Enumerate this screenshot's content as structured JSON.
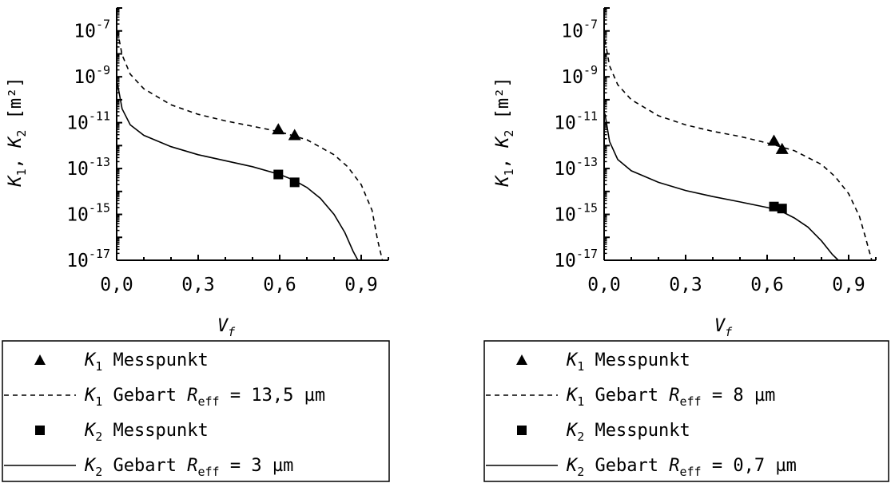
{
  "chart_data": [
    {
      "type": "line",
      "title": "",
      "xlabel_var": "V",
      "xlabel_sub": "f",
      "ylabel_k1": "K",
      "ylabel_k1_sub": "1",
      "ylabel_sep": ", ",
      "ylabel_k2": "K",
      "ylabel_k2_sub": "2",
      "ylabel_unit": " [m²]",
      "x_scale": "linear",
      "y_scale": "log",
      "xlim": [
        0.0,
        1.0
      ],
      "ylim": [
        1e-17,
        1e-06
      ],
      "x_ticks": [
        "0,0",
        "0,3",
        "0,6",
        "0,9"
      ],
      "x_tick_values": [
        0.0,
        0.3,
        0.6,
        0.9
      ],
      "y_tick_mantissa": "10",
      "y_tick_exponents": [
        "-7",
        "-9",
        "-11",
        "-13",
        "-15",
        "-17"
      ],
      "grid": false,
      "legend_position": "bottom",
      "series": [
        {
          "name": "K1 Messpunkt",
          "kind": "scatter",
          "marker": "triangle",
          "legend": {
            "k": "K",
            "sub": "1",
            "text": " Messpunkt",
            "param": "",
            "eq": "",
            "value": ""
          },
          "points": [
            {
              "x": 0.595,
              "y": 5e-12
            },
            {
              "x": 0.655,
              "y": 2.8e-12
            }
          ]
        },
        {
          "name": "K1 Gebart",
          "kind": "line",
          "style": "dashed",
          "legend": {
            "k": "K",
            "sub": "1",
            "text": " Gebart ",
            "param": "R",
            "param_sub": "eff",
            "eq": " = ",
            "value": "13,5 µm"
          },
          "points": [
            {
              "x": 0.003,
              "y": 1e-07
            },
            {
              "x": 0.02,
              "y": 9e-09
            },
            {
              "x": 0.05,
              "y": 1.3e-09
            },
            {
              "x": 0.1,
              "y": 3e-10
            },
            {
              "x": 0.2,
              "y": 6e-11
            },
            {
              "x": 0.3,
              "y": 2.3e-11
            },
            {
              "x": 0.4,
              "y": 1.2e-11
            },
            {
              "x": 0.5,
              "y": 7e-12
            },
            {
              "x": 0.6,
              "y": 4e-12
            },
            {
              "x": 0.7,
              "y": 1.8e-12
            },
            {
              "x": 0.8,
              "y": 4e-13
            },
            {
              "x": 0.85,
              "y": 1.2e-13
            },
            {
              "x": 0.9,
              "y": 2e-14
            },
            {
              "x": 0.94,
              "y": 1.5e-15
            },
            {
              "x": 0.96,
              "y": 8e-17
            },
            {
              "x": 0.978,
              "y": 1e-17
            }
          ]
        },
        {
          "name": "K2 Messpunkt",
          "kind": "scatter",
          "marker": "square",
          "legend": {
            "k": "K",
            "sub": "2",
            "text": " Messpunkt",
            "param": "",
            "eq": "",
            "value": ""
          },
          "points": [
            {
              "x": 0.595,
              "y": 5.5e-14
            },
            {
              "x": 0.655,
              "y": 2.5e-14
            }
          ]
        },
        {
          "name": "K2 Gebart",
          "kind": "line",
          "style": "solid",
          "legend": {
            "k": "K",
            "sub": "2",
            "text": " Gebart ",
            "param": "R",
            "param_sub": "eff",
            "eq": " = ",
            "value": "3 µm"
          },
          "points": [
            {
              "x": 0.003,
              "y": 5e-10
            },
            {
              "x": 0.02,
              "y": 4e-11
            },
            {
              "x": 0.05,
              "y": 8e-12
            },
            {
              "x": 0.1,
              "y": 2.8e-12
            },
            {
              "x": 0.2,
              "y": 9e-13
            },
            {
              "x": 0.3,
              "y": 4e-13
            },
            {
              "x": 0.4,
              "y": 2.2e-13
            },
            {
              "x": 0.5,
              "y": 1.2e-13
            },
            {
              "x": 0.6,
              "y": 5.5e-14
            },
            {
              "x": 0.65,
              "y": 3.2e-14
            },
            {
              "x": 0.7,
              "y": 1.5e-14
            },
            {
              "x": 0.75,
              "y": 5e-15
            },
            {
              "x": 0.8,
              "y": 1e-15
            },
            {
              "x": 0.84,
              "y": 1.6e-16
            },
            {
              "x": 0.87,
              "y": 2.5e-17
            },
            {
              "x": 0.888,
              "y": 1e-17
            }
          ]
        }
      ]
    },
    {
      "type": "line",
      "title": "",
      "xlabel_var": "V",
      "xlabel_sub": "f",
      "ylabel_k1": "K",
      "ylabel_k1_sub": "1",
      "ylabel_sep": ", ",
      "ylabel_k2": "K",
      "ylabel_k2_sub": "2",
      "ylabel_unit": " [m²]",
      "x_scale": "linear",
      "y_scale": "log",
      "xlim": [
        0.0,
        1.0
      ],
      "ylim": [
        1e-17,
        1e-06
      ],
      "x_ticks": [
        "0,0",
        "0,3",
        "0,6",
        "0,9"
      ],
      "x_tick_values": [
        0.0,
        0.3,
        0.6,
        0.9
      ],
      "y_tick_mantissa": "10",
      "y_tick_exponents": [
        "-7",
        "-9",
        "-11",
        "-13",
        "-15",
        "-17"
      ],
      "grid": false,
      "legend_position": "bottom",
      "series": [
        {
          "name": "K1 Messpunkt",
          "kind": "scatter",
          "marker": "triangle",
          "legend": {
            "k": "K",
            "sub": "1",
            "text": " Messpunkt",
            "param": "",
            "eq": "",
            "value": ""
          },
          "points": [
            {
              "x": 0.625,
              "y": 1.6e-12
            },
            {
              "x": 0.655,
              "y": 7e-13
            }
          ]
        },
        {
          "name": "K1 Gebart",
          "kind": "line",
          "style": "dashed",
          "legend": {
            "k": "K",
            "sub": "1",
            "text": " Gebart ",
            "param": "R",
            "param_sub": "eff",
            "eq": " = ",
            "value": "8 µm"
          },
          "points": [
            {
              "x": 0.003,
              "y": 4e-08
            },
            {
              "x": 0.02,
              "y": 3e-09
            },
            {
              "x": 0.05,
              "y": 4.5e-10
            },
            {
              "x": 0.1,
              "y": 1e-10
            },
            {
              "x": 0.2,
              "y": 2e-11
            },
            {
              "x": 0.3,
              "y": 8e-12
            },
            {
              "x": 0.4,
              "y": 4.2e-12
            },
            {
              "x": 0.5,
              "y": 2.5e-12
            },
            {
              "x": 0.6,
              "y": 1.3e-12
            },
            {
              "x": 0.7,
              "y": 6e-13
            },
            {
              "x": 0.8,
              "y": 1.5e-13
            },
            {
              "x": 0.85,
              "y": 4.5e-14
            },
            {
              "x": 0.9,
              "y": 8e-15
            },
            {
              "x": 0.94,
              "y": 8e-16
            },
            {
              "x": 0.96,
              "y": 1.2e-16
            },
            {
              "x": 0.985,
              "y": 1e-17
            }
          ]
        },
        {
          "name": "K2 Messpunkt",
          "kind": "scatter",
          "marker": "square",
          "legend": {
            "k": "K",
            "sub": "2",
            "text": " Messpunkt",
            "param": "",
            "eq": "",
            "value": ""
          },
          "points": [
            {
              "x": 0.625,
              "y": 2.2e-15
            },
            {
              "x": 0.655,
              "y": 1.8e-15
            }
          ]
        },
        {
          "name": "K2 Gebart",
          "kind": "line",
          "style": "solid",
          "legend": {
            "k": "K",
            "sub": "2",
            "text": " Gebart ",
            "param": "R",
            "param_sub": "eff",
            "eq": " = ",
            "value": "0,7 µm"
          },
          "points": [
            {
              "x": 0.003,
              "y": 2.5e-11
            },
            {
              "x": 0.02,
              "y": 1.5e-12
            },
            {
              "x": 0.05,
              "y": 2.5e-13
            },
            {
              "x": 0.1,
              "y": 8e-14
            },
            {
              "x": 0.2,
              "y": 2.5e-14
            },
            {
              "x": 0.3,
              "y": 1.1e-14
            },
            {
              "x": 0.4,
              "y": 6e-15
            },
            {
              "x": 0.5,
              "y": 3.5e-15
            },
            {
              "x": 0.6,
              "y": 2e-15
            },
            {
              "x": 0.65,
              "y": 1.4e-15
            },
            {
              "x": 0.7,
              "y": 7e-16
            },
            {
              "x": 0.75,
              "y": 2.8e-16
            },
            {
              "x": 0.8,
              "y": 7e-17
            },
            {
              "x": 0.84,
              "y": 1.8e-17
            },
            {
              "x": 0.862,
              "y": 1e-17
            }
          ]
        }
      ]
    }
  ]
}
